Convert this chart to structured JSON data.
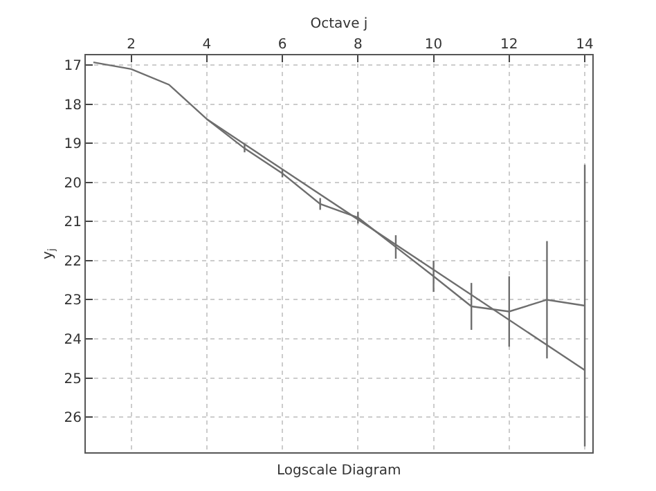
{
  "chart_data": {
    "type": "line",
    "title": "Logscale Diagram",
    "xlabel": "Octave j",
    "ylabel": "y$_{j}$",
    "xlim": [
      0.8,
      14.2
    ],
    "xticks": [
      2,
      4,
      6,
      8,
      10,
      12,
      14
    ],
    "ylim": [
      26.9,
      16.75
    ],
    "yticks": [
      17,
      18,
      19,
      20,
      21,
      22,
      23,
      24,
      25,
      26
    ],
    "grid": true,
    "marker": "none",
    "line_style": "solid",
    "series": [
      {
        "color": "#6e6e6e",
        "x": [
          1,
          2,
          3,
          4,
          5,
          6,
          7,
          8,
          9,
          10,
          11,
          12,
          13,
          14
        ],
        "values": [
          16.93,
          17.1,
          17.5,
          18.38,
          19.13,
          19.77,
          20.55,
          20.9,
          21.65,
          22.4,
          23.17,
          23.3,
          23.0,
          23.15
        ],
        "errors": [
          null,
          null,
          null,
          null,
          0.1,
          0.1,
          0.15,
          0.15,
          0.3,
          0.4,
          0.6,
          0.9,
          1.5,
          3.6
        ]
      },
      {
        "color": "#6e6e6e",
        "x": [
          4,
          14
        ],
        "values": [
          18.38,
          24.8
        ]
      }
    ]
  }
}
